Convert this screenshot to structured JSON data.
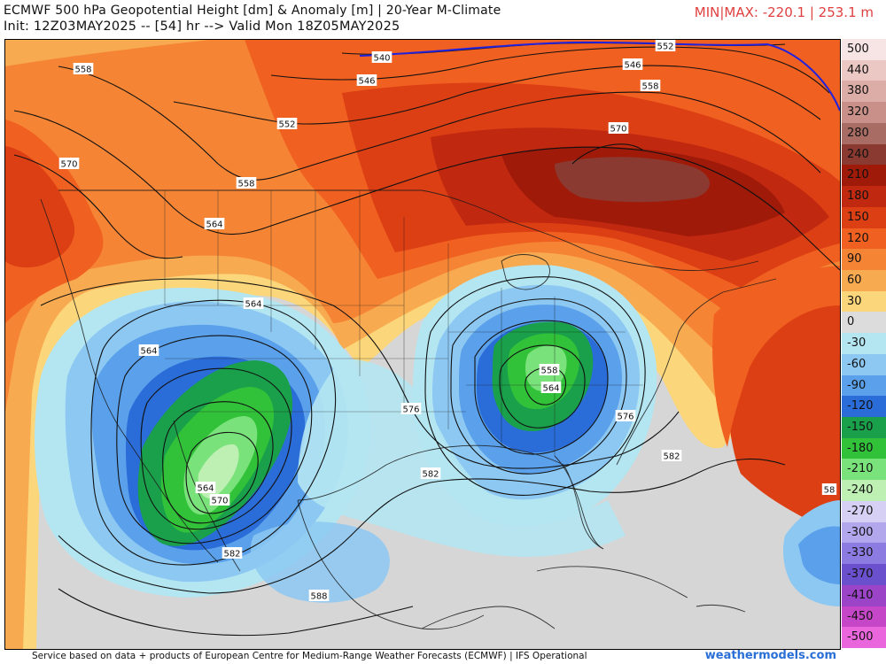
{
  "header": {
    "title_line1": "ECMWF 500 hPa Geopotential Height [dm] & Anomaly [m] | 20-Year M-Climate",
    "title_line2": "Init: 12Z03MAY2025 -- [54] hr --> Valid Mon 18Z05MAY2025",
    "minmax": "MIN|MAX: -220.1 | 253.1 m"
  },
  "colorbar": {
    "labels": [
      "500",
      "440",
      "380",
      "320",
      "280",
      "240",
      "210",
      "180",
      "150",
      "120",
      "90",
      "60",
      "30",
      "0",
      "-30",
      "-60",
      "-90",
      "-120",
      "-150",
      "-180",
      "-210",
      "-240",
      "-270",
      "-300",
      "-330",
      "-370",
      "-410",
      "-450",
      "-500"
    ],
    "colors": [
      "#f7e4e4",
      "#ecc8c4",
      "#dcaca6",
      "#c89088",
      "#a86c64",
      "#8a3a30",
      "#a01a0a",
      "#c02810",
      "#dd3f14",
      "#f06020",
      "#f58535",
      "#f8aa50",
      "#fbd67a",
      "#dcdcdc",
      "#b4e6f2",
      "#8cc8f2",
      "#5aa0ea",
      "#2a6cd8",
      "#1aa04a",
      "#32c23a",
      "#7ae27a",
      "#bef0b4",
      "#d6d0f4",
      "#b2a6ec",
      "#8c7ce2",
      "#6a50cc",
      "#9c44c8",
      "#c646c8",
      "#ea66dc"
    ]
  },
  "contour_labels": [
    {
      "text": "558"
    },
    {
      "text": "540"
    },
    {
      "text": "546"
    },
    {
      "text": "552"
    },
    {
      "text": "546"
    },
    {
      "text": "552"
    },
    {
      "text": "558"
    },
    {
      "text": "570"
    },
    {
      "text": "570"
    },
    {
      "text": "558"
    },
    {
      "text": "564"
    },
    {
      "text": "564"
    },
    {
      "text": "564"
    },
    {
      "text": "558"
    },
    {
      "text": "564"
    },
    {
      "text": "576"
    },
    {
      "text": "576"
    },
    {
      "text": "582"
    },
    {
      "text": "582"
    },
    {
      "text": "564"
    },
    {
      "text": "570"
    },
    {
      "text": "582"
    },
    {
      "text": "588"
    },
    {
      "text": "58"
    }
  ],
  "footer": {
    "text": "Service based on data + products of European Centre for Medium-Range Weather Forecasts (ECMWF) | IFS Operational",
    "brand": "weathermodels.com"
  }
}
